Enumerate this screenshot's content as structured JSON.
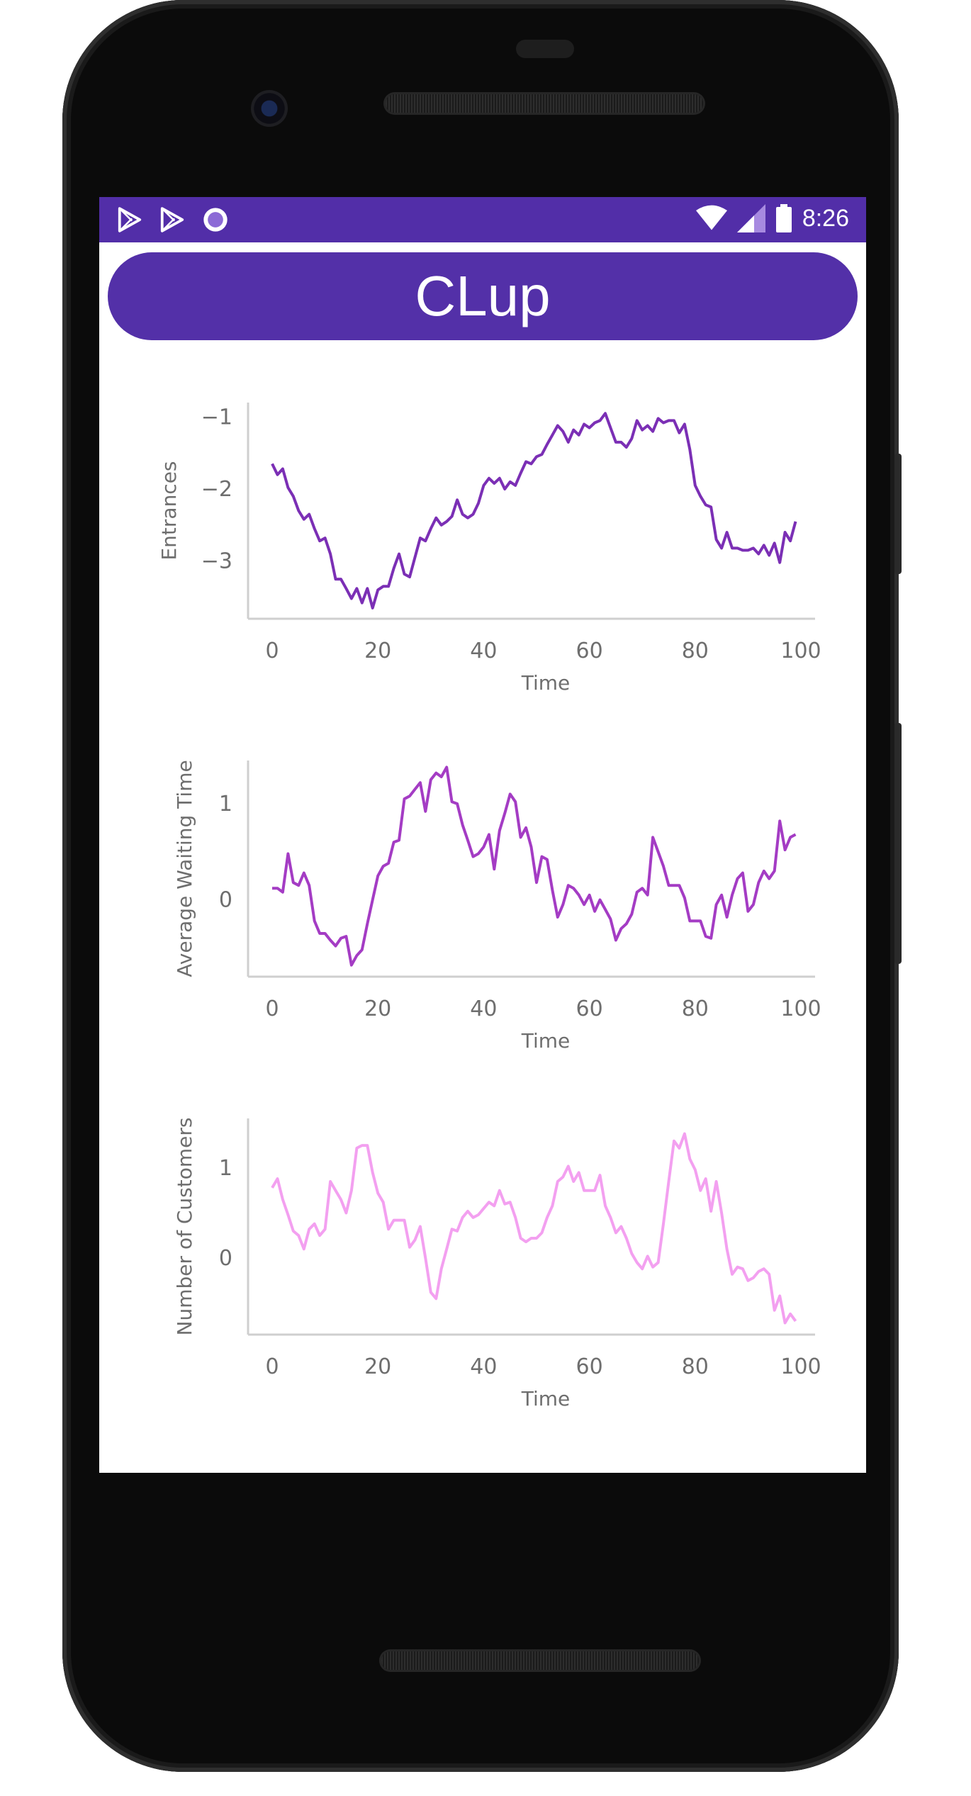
{
  "status_bar": {
    "time": "8:26",
    "left_icons": [
      "play-store-icon",
      "play-store-icon",
      "record-circle-icon"
    ],
    "right_icons": [
      "wifi-icon",
      "cellular-signal-icon",
      "battery-icon"
    ],
    "background": "#522ea8"
  },
  "app": {
    "title": "CLup",
    "accent": "#5330a8"
  },
  "chart_data": [
    {
      "type": "line",
      "ylabel": "Entrances",
      "xlabel": "Time",
      "color": "#7b2fb5",
      "xlim": [
        0,
        100
      ],
      "ylim": [
        -3.8,
        -0.8
      ],
      "xticks": [
        "0",
        "20",
        "40",
        "60",
        "80",
        "100"
      ],
      "yticks": [
        "−1",
        "−2",
        "−3"
      ],
      "ytick_values": [
        -1,
        -2,
        -3
      ],
      "x": [
        0,
        1,
        2,
        3,
        4,
        5,
        6,
        7,
        8,
        9,
        10,
        11,
        12,
        13,
        14,
        15,
        16,
        17,
        18,
        19,
        20,
        21,
        22,
        23,
        24,
        25,
        26,
        27,
        28,
        29,
        30,
        31,
        32,
        33,
        34,
        35,
        36,
        37,
        38,
        39,
        40,
        41,
        42,
        43,
        44,
        45,
        46,
        47,
        48,
        49,
        50,
        51,
        52,
        53,
        54,
        55,
        56,
        57,
        58,
        59,
        60,
        61,
        62,
        63,
        64,
        65,
        66,
        67,
        68,
        69,
        70,
        71,
        72,
        73,
        74,
        75,
        76,
        77,
        78,
        79,
        80,
        81,
        82,
        83,
        84,
        85,
        86,
        87,
        88,
        89,
        90,
        91,
        92,
        93,
        94,
        95,
        96,
        97,
        98,
        99
      ],
      "values": [
        -1.65,
        -1.8,
        -1.72,
        -1.98,
        -2.1,
        -2.3,
        -2.42,
        -2.35,
        -2.55,
        -2.72,
        -2.68,
        -2.9,
        -3.25,
        -3.25,
        -3.38,
        -3.52,
        -3.38,
        -3.58,
        -3.38,
        -3.65,
        -3.4,
        -3.35,
        -3.35,
        -3.1,
        -2.9,
        -3.18,
        -3.22,
        -2.95,
        -2.68,
        -2.72,
        -2.55,
        -2.4,
        -2.5,
        -2.45,
        -2.38,
        -2.15,
        -2.35,
        -2.4,
        -2.35,
        -2.2,
        -1.95,
        -1.85,
        -1.92,
        -1.85,
        -2.0,
        -1.9,
        -1.95,
        -1.78,
        -1.62,
        -1.65,
        -1.55,
        -1.52,
        -1.38,
        -1.25,
        -1.12,
        -1.2,
        -1.35,
        -1.18,
        -1.25,
        -1.1,
        -1.15,
        -1.08,
        -1.05,
        -0.95,
        -1.15,
        -1.35,
        -1.35,
        -1.42,
        -1.3,
        -1.05,
        -1.18,
        -1.12,
        -1.2,
        -1.02,
        -1.08,
        -1.05,
        -1.05,
        -1.22,
        -1.1,
        -1.45,
        -1.95,
        -2.1,
        -2.22,
        -2.25,
        -2.7,
        -2.82,
        -2.6,
        -2.82,
        -2.82,
        -2.85,
        -2.85,
        -2.82,
        -2.9,
        -2.78,
        -2.92,
        -2.75,
        -3.02,
        -2.6,
        -2.72,
        -2.45
      ]
    },
    {
      "type": "line",
      "ylabel": "Average Waiting Time",
      "xlabel": "Time",
      "color": "#a43cc4",
      "xlim": [
        0,
        100
      ],
      "ylim": [
        -0.8,
        1.45
      ],
      "xticks": [
        "0",
        "20",
        "40",
        "60",
        "80",
        "100"
      ],
      "yticks": [
        "1",
        "0"
      ],
      "ytick_values": [
        1,
        0
      ],
      "x": [
        0,
        1,
        2,
        3,
        4,
        5,
        6,
        7,
        8,
        9,
        10,
        11,
        12,
        13,
        14,
        15,
        16,
        17,
        18,
        19,
        20,
        21,
        22,
        23,
        24,
        25,
        26,
        27,
        28,
        29,
        30,
        31,
        32,
        33,
        34,
        35,
        36,
        37,
        38,
        39,
        40,
        41,
        42,
        43,
        44,
        45,
        46,
        47,
        48,
        49,
        50,
        51,
        52,
        53,
        54,
        55,
        56,
        57,
        58,
        59,
        60,
        61,
        62,
        63,
        64,
        65,
        66,
        67,
        68,
        69,
        70,
        71,
        72,
        73,
        74,
        75,
        76,
        77,
        78,
        79,
        80,
        81,
        82,
        83,
        84,
        85,
        86,
        87,
        88,
        89,
        90,
        91,
        92,
        93,
        94,
        95,
        96,
        97,
        98,
        99
      ],
      "values": [
        0.12,
        0.12,
        0.08,
        0.48,
        0.18,
        0.15,
        0.28,
        0.15,
        -0.22,
        -0.35,
        -0.35,
        -0.42,
        -0.48,
        -0.4,
        -0.38,
        -0.68,
        -0.58,
        -0.52,
        -0.25,
        0.0,
        0.25,
        0.35,
        0.38,
        0.6,
        0.62,
        1.05,
        1.08,
        1.15,
        1.22,
        0.92,
        1.25,
        1.32,
        1.28,
        1.38,
        1.02,
        1.0,
        0.78,
        0.62,
        0.45,
        0.48,
        0.55,
        0.68,
        0.32,
        0.72,
        0.9,
        1.1,
        1.02,
        0.65,
        0.75,
        0.55,
        0.18,
        0.45,
        0.42,
        0.1,
        -0.18,
        -0.05,
        0.15,
        0.12,
        0.05,
        -0.05,
        0.05,
        -0.12,
        0.0,
        -0.1,
        -0.2,
        -0.42,
        -0.3,
        -0.25,
        -0.15,
        0.08,
        0.12,
        0.05,
        0.65,
        0.5,
        0.35,
        0.15,
        0.15,
        0.15,
        0.02,
        -0.22,
        -0.22,
        -0.22,
        -0.38,
        -0.4,
        -0.05,
        0.05,
        -0.18,
        0.05,
        0.22,
        0.28,
        -0.12,
        -0.05,
        0.18,
        0.3,
        0.22,
        0.3,
        0.82,
        0.52,
        0.65,
        0.68
      ]
    },
    {
      "type": "line",
      "ylabel": "Number of Customers",
      "xlabel": "Time",
      "color": "#f3a0f0",
      "xlim": [
        0,
        100
      ],
      "ylim": [
        -0.85,
        1.55
      ],
      "xticks": [
        "0",
        "20",
        "40",
        "60",
        "80",
        "100"
      ],
      "yticks": [
        "1",
        "0"
      ],
      "ytick_values": [
        1,
        0
      ],
      "x": [
        0,
        1,
        2,
        3,
        4,
        5,
        6,
        7,
        8,
        9,
        10,
        11,
        12,
        13,
        14,
        15,
        16,
        17,
        18,
        19,
        20,
        21,
        22,
        23,
        24,
        25,
        26,
        27,
        28,
        29,
        30,
        31,
        32,
        33,
        34,
        35,
        36,
        37,
        38,
        39,
        40,
        41,
        42,
        43,
        44,
        45,
        46,
        47,
        48,
        49,
        50,
        51,
        52,
        53,
        54,
        55,
        56,
        57,
        58,
        59,
        60,
        61,
        62,
        63,
        64,
        65,
        66,
        67,
        68,
        69,
        70,
        71,
        72,
        73,
        74,
        75,
        76,
        77,
        78,
        79,
        80,
        81,
        82,
        83,
        84,
        85,
        86,
        87,
        88,
        89,
        90,
        91,
        92,
        93,
        94,
        95,
        96,
        97,
        98,
        99
      ],
      "values": [
        0.78,
        0.88,
        0.65,
        0.48,
        0.3,
        0.25,
        0.1,
        0.32,
        0.38,
        0.25,
        0.32,
        0.85,
        0.75,
        0.65,
        0.5,
        0.75,
        1.22,
        1.25,
        1.25,
        0.95,
        0.72,
        0.62,
        0.32,
        0.42,
        0.42,
        0.42,
        0.12,
        0.2,
        0.35,
        0.0,
        -0.38,
        -0.45,
        -0.12,
        0.1,
        0.32,
        0.3,
        0.45,
        0.52,
        0.45,
        0.48,
        0.55,
        0.62,
        0.58,
        0.75,
        0.6,
        0.62,
        0.45,
        0.22,
        0.18,
        0.22,
        0.22,
        0.28,
        0.45,
        0.58,
        0.85,
        0.9,
        1.02,
        0.85,
        0.95,
        0.75,
        0.75,
        0.75,
        0.92,
        0.58,
        0.45,
        0.28,
        0.35,
        0.22,
        0.05,
        -0.05,
        -0.12,
        0.02,
        -0.1,
        -0.05,
        0.38,
        0.85,
        1.3,
        1.22,
        1.38,
        1.1,
        0.98,
        0.75,
        0.88,
        0.52,
        0.85,
        0.5,
        0.1,
        -0.18,
        -0.1,
        -0.12,
        -0.25,
        -0.22,
        -0.15,
        -0.12,
        -0.18,
        -0.58,
        -0.42,
        -0.72,
        -0.62,
        -0.7
      ]
    }
  ]
}
